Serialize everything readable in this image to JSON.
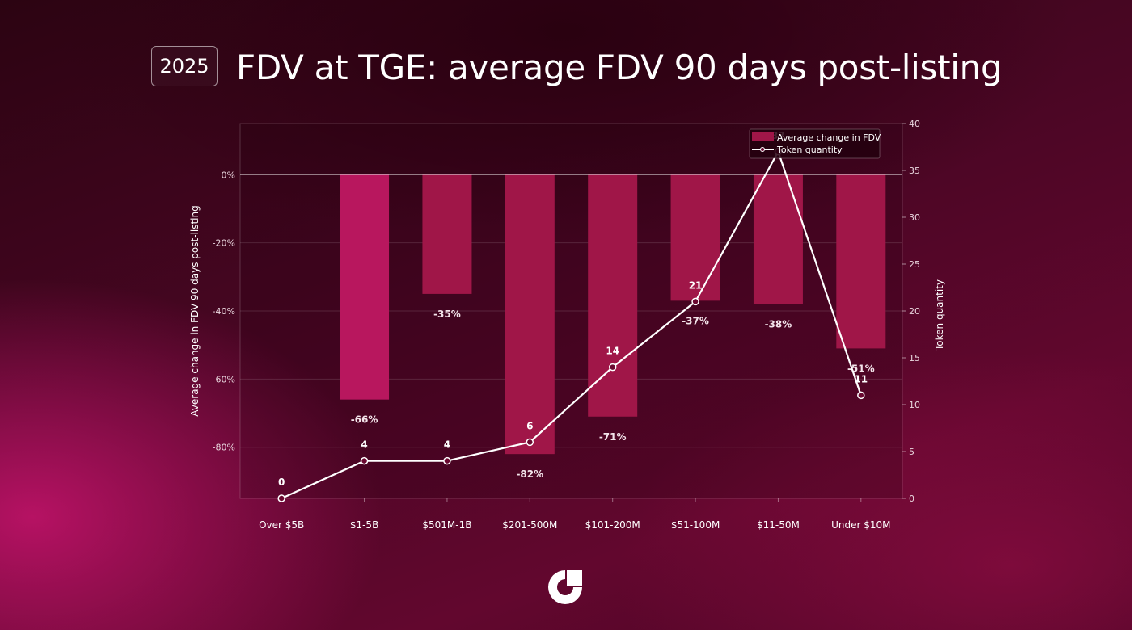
{
  "header": {
    "year_badge": "2025",
    "title": "FDV at TGE: average FDV 90 days post-listing"
  },
  "logo": {
    "icon": "brand-logo-icon"
  },
  "colors": {
    "bar": "#a01648",
    "line": "#ffffff",
    "background": "#4a0624"
  },
  "chart_data": {
    "type": "bar",
    "categories": [
      "Over $5B",
      "$1-5B",
      "$501M-1B",
      "$201-500M",
      "$101-200M",
      "$51-100M",
      "$11-50M",
      "Under $10M"
    ],
    "series": [
      {
        "name": "Average change in FDV",
        "type": "bar",
        "axis": "left",
        "values": [
          0,
          -66,
          -35,
          -82,
          -71,
          -37,
          -38,
          -51
        ],
        "data_labels": [
          "",
          "-66%",
          "-35%",
          "-82%",
          "-71%",
          "-37%",
          "-38%",
          "-51%"
        ]
      },
      {
        "name": "Token quantity",
        "type": "line",
        "axis": "right",
        "values": [
          0,
          4,
          4,
          6,
          14,
          21,
          37,
          11
        ],
        "data_labels": [
          "0",
          "4",
          "4",
          "6",
          "14",
          "21",
          "37",
          "11"
        ]
      }
    ],
    "y_left": {
      "label": "Average change in FDV 90 days post-listing",
      "ticks": [
        0,
        -20,
        -40,
        -60,
        -80
      ],
      "tick_labels": [
        "0%",
        "-20%",
        "-40%",
        "-60%",
        "-80%"
      ],
      "range": [
        -95,
        15
      ]
    },
    "y_right": {
      "label": "Token quantity",
      "ticks": [
        0,
        5,
        10,
        15,
        20,
        25,
        30,
        35,
        40
      ],
      "tick_labels": [
        "0",
        "5",
        "10",
        "15",
        "20",
        "25",
        "30",
        "35",
        "40"
      ],
      "range": [
        0,
        40
      ]
    },
    "grid": true,
    "legend": {
      "position": "top-right",
      "entries": [
        "Average change in FDV",
        "Token quantity"
      ]
    }
  }
}
